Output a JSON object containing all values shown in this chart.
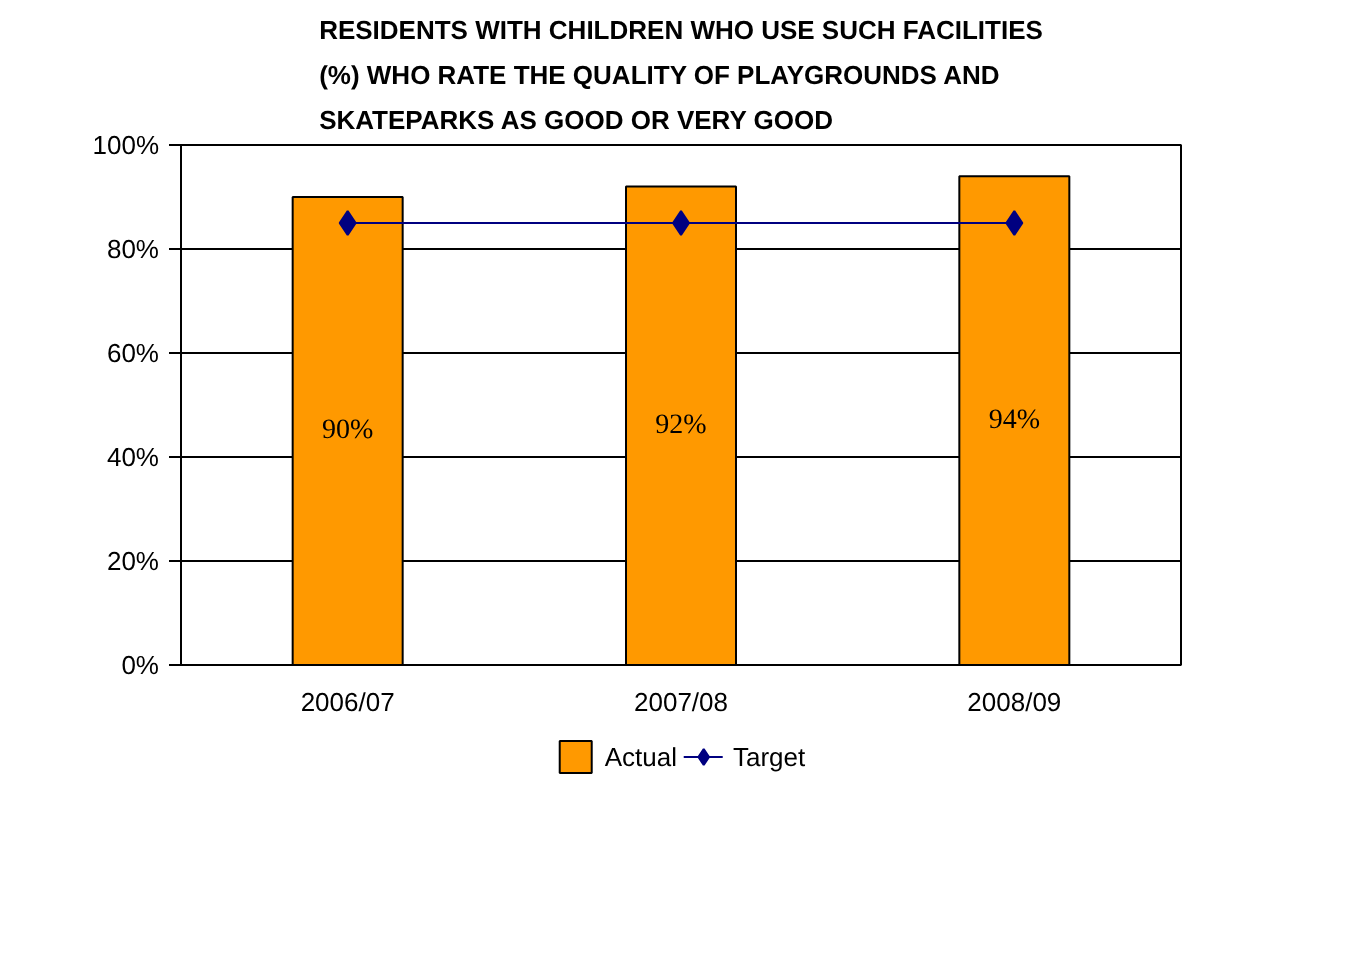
{
  "chart_data": {
    "type": "bar",
    "title": "RESIDENTS WITH CHILDREN WHO USE SUCH FACILITIES (%) WHO RATE THE QUALITY OF PLAYGROUNDS AND SKATEPARKS AS GOOD OR VERY GOOD",
    "categories": [
      "2006/07",
      "2007/08",
      "2008/09"
    ],
    "series": [
      {
        "name": "Actual",
        "color": "#ff9900",
        "values": [
          90,
          92,
          94
        ],
        "value_labels": [
          "90%",
          "92%",
          "94%"
        ]
      },
      {
        "name": "Target",
        "type": "line",
        "color": "#000080",
        "values": [
          85,
          85,
          85
        ],
        "marker": "diamond"
      }
    ],
    "ylim": [
      0,
      100
    ],
    "yticks": [
      {
        "value": 0,
        "label": "0%"
      },
      {
        "value": 20,
        "label": "20%"
      },
      {
        "value": 40,
        "label": "40%"
      },
      {
        "value": 60,
        "label": "60%"
      },
      {
        "value": 80,
        "label": "80%"
      },
      {
        "value": 100,
        "label": "100%"
      }
    ],
    "grid": "y",
    "legend": "bottom"
  }
}
